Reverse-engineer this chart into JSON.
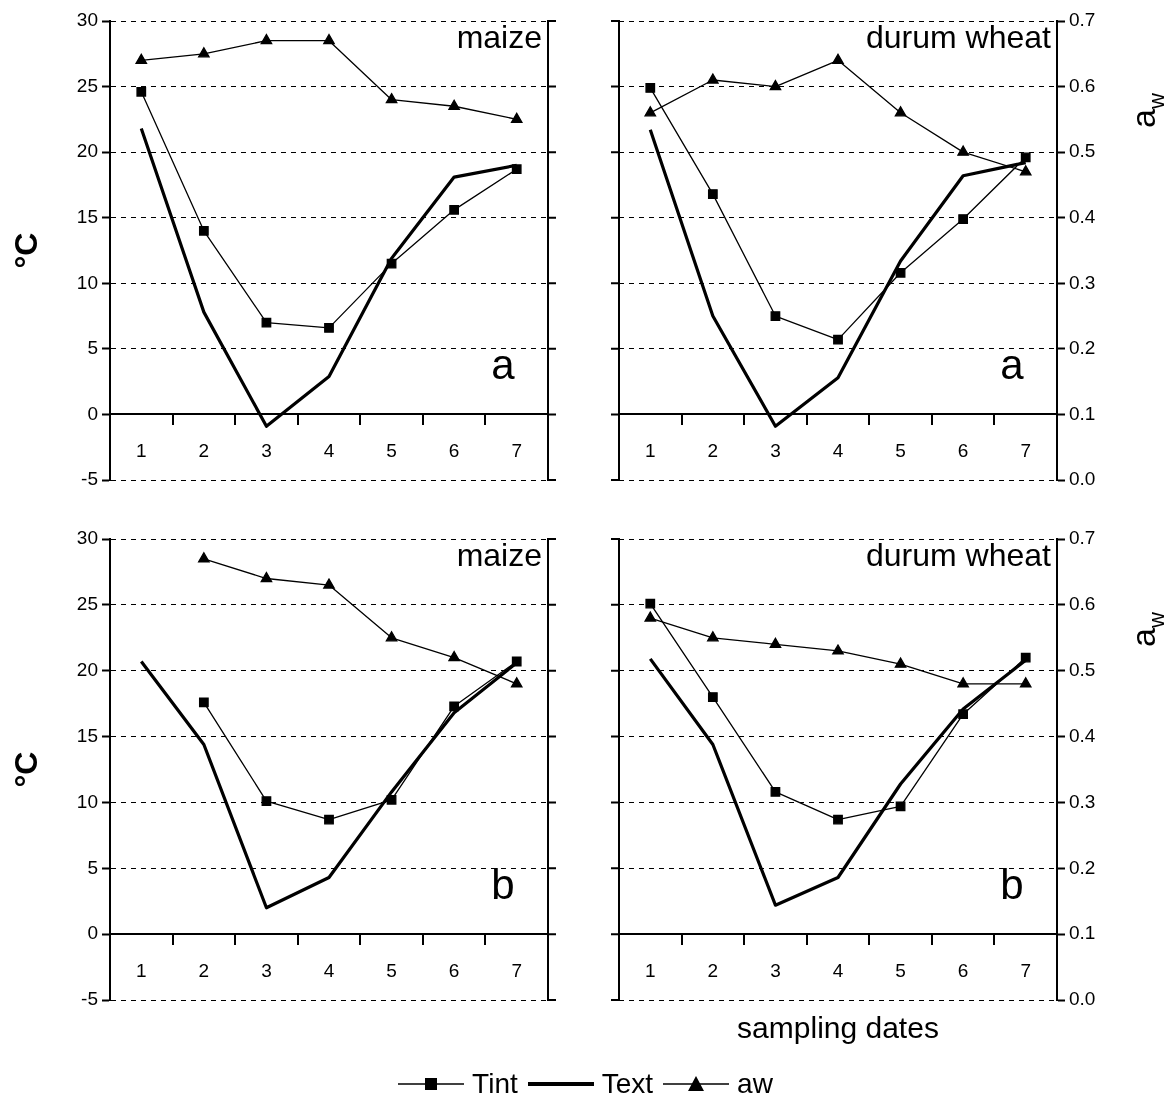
{
  "chart_data": [
    {
      "type": "line",
      "ylabel": "°C",
      "annotations": [
        "maize",
        "a"
      ],
      "categories": [
        "1",
        "2",
        "3",
        "4",
        "5",
        "6",
        "7"
      ],
      "ylim": [
        -5,
        30
      ],
      "yticks": [
        -5,
        0,
        5,
        10,
        15,
        20,
        25,
        30
      ],
      "y2lim": [
        0,
        0.7
      ],
      "grid": "y",
      "tick_labels": [
        "x",
        "y"
      ],
      "line_style": "solid",
      "series": [
        {
          "color": "#000000",
          "marker": "square",
          "values": [
            24.6,
            14.0,
            7.0,
            6.6,
            11.5,
            15.6,
            18.7
          ]
        },
        {
          "color": "#000000",
          "marker": "none",
          "values": [
            21.8,
            7.8,
            -0.9,
            2.9,
            11.9,
            18.1,
            19.0
          ]
        },
        {
          "color": "#000000",
          "marker": "triangle",
          "axis": "y2",
          "values": [
            0.64,
            0.65,
            0.67,
            0.67,
            0.58,
            0.57,
            0.55
          ]
        }
      ]
    },
    {
      "type": "line",
      "y2label": "a$_{w}$",
      "annotations": [
        "durum wheat",
        "a"
      ],
      "categories": [
        "1",
        "2",
        "3",
        "4",
        "5",
        "6",
        "7"
      ],
      "ylim": [
        -5,
        30
      ],
      "y2lim": [
        0,
        0.7
      ],
      "y2ticks": [
        {
          "value": 0,
          "label": "0.0"
        },
        0.1,
        0.2,
        0.3,
        0.4,
        0.5,
        0.6,
        0.7
      ],
      "grid": "y2",
      "tick_labels": [
        "x",
        "y2"
      ],
      "line_style": "solid",
      "series": [
        {
          "color": "#000000",
          "marker": "square",
          "values": [
            24.9,
            16.8,
            7.5,
            5.7,
            10.8,
            14.9,
            19.6
          ]
        },
        {
          "color": "#000000",
          "marker": "none",
          "values": [
            21.7,
            7.5,
            -0.9,
            2.8,
            11.7,
            18.2,
            19.2
          ]
        },
        {
          "color": "#000000",
          "marker": "triangle",
          "axis": "y2",
          "values": [
            0.56,
            0.61,
            0.6,
            0.64,
            0.56,
            0.5,
            0.47
          ]
        }
      ]
    },
    {
      "type": "line",
      "ylabel": "°C",
      "annotations": [
        "maize",
        "b"
      ],
      "categories": [
        "1",
        "2",
        "3",
        "4",
        "5",
        "6",
        "7"
      ],
      "ylim": [
        -5,
        30
      ],
      "yticks": [
        -5,
        0,
        5,
        10,
        15,
        20,
        25,
        30
      ],
      "y2lim": [
        0,
        0.7
      ],
      "grid": "y",
      "tick_labels": [
        "x",
        "y"
      ],
      "line_style": "solid",
      "series": [
        {
          "color": "#000000",
          "marker": "square",
          "values": [
            null,
            17.6,
            10.1,
            8.7,
            10.2,
            17.3,
            20.7
          ]
        },
        {
          "color": "#000000",
          "marker": "none",
          "values": [
            20.7,
            14.4,
            2.0,
            4.3,
            10.8,
            16.8,
            20.6
          ]
        },
        {
          "color": "#000000",
          "marker": "triangle",
          "axis": "y2",
          "values": [
            null,
            0.67,
            0.64,
            0.63,
            0.55,
            0.52,
            0.48
          ]
        }
      ]
    },
    {
      "type": "line",
      "xlabel": "sampling dates",
      "y2label": "a$_{w}$",
      "annotations": [
        "durum wheat",
        "b"
      ],
      "categories": [
        "1",
        "2",
        "3",
        "4",
        "5",
        "6",
        "7"
      ],
      "ylim": [
        -5,
        30
      ],
      "y2lim": [
        0,
        0.7
      ],
      "y2ticks": [
        {
          "value": 0,
          "label": "0.0"
        },
        0.1,
        0.2,
        0.3,
        0.4,
        0.5,
        0.6,
        0.7
      ],
      "grid": "y2",
      "tick_labels": [
        "x",
        "y2"
      ],
      "line_style": "solid",
      "legend": "bottom",
      "series": [
        {
          "name": "Tint",
          "color": "#000000",
          "marker": "square",
          "values": [
            25.1,
            18.0,
            10.8,
            8.7,
            9.7,
            16.7,
            21.0
          ]
        },
        {
          "name": "Text",
          "color": "#000000",
          "marker": "none",
          "values": [
            20.9,
            14.4,
            2.2,
            4.3,
            11.4,
            17.1,
            20.8
          ]
        },
        {
          "name": "aw",
          "color": "#000000",
          "marker": "triangle",
          "axis": "y2",
          "values": [
            0.58,
            0.55,
            0.54,
            0.53,
            0.51,
            0.48,
            0.48
          ]
        }
      ]
    }
  ]
}
